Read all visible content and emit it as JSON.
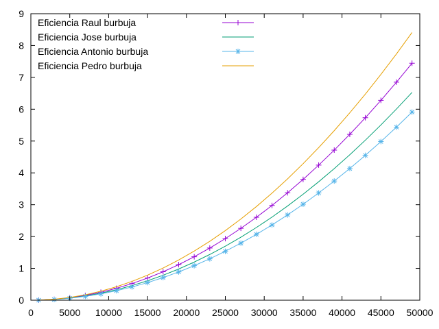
{
  "chart_data": {
    "type": "line",
    "title": "",
    "xlabel": "",
    "ylabel": "",
    "xlim": [
      0,
      50000
    ],
    "ylim": [
      0,
      9
    ],
    "xticks": [
      0,
      5000,
      10000,
      15000,
      20000,
      25000,
      30000,
      35000,
      40000,
      45000,
      50000
    ],
    "yticks": [
      0,
      1,
      2,
      3,
      4,
      5,
      6,
      7,
      8,
      9
    ],
    "grid": false,
    "legend_position": "top-left",
    "x": [
      1000,
      3000,
      5000,
      7000,
      9000,
      11000,
      13000,
      15000,
      17000,
      19000,
      21000,
      23000,
      25000,
      27000,
      29000,
      31000,
      33000,
      35000,
      37000,
      39000,
      41000,
      43000,
      45000,
      47000,
      49000
    ],
    "series": [
      {
        "name": "Eficiencia Raul burbuja",
        "color": "#9400d3",
        "marker": "plus",
        "values": [
          0.003,
          0.028,
          0.078,
          0.152,
          0.25,
          0.374,
          0.523,
          0.696,
          0.894,
          1.117,
          1.365,
          1.638,
          1.935,
          2.258,
          2.605,
          2.977,
          3.374,
          3.796,
          4.243,
          4.714,
          5.211,
          5.732,
          6.278,
          6.849,
          7.444
        ]
      },
      {
        "name": "Eficiencia Jose burbuja",
        "color": "#009e73",
        "marker": "none",
        "values": [
          0.003,
          0.024,
          0.068,
          0.133,
          0.22,
          0.329,
          0.459,
          0.611,
          0.785,
          0.98,
          1.198,
          1.437,
          1.698,
          1.98,
          2.285,
          2.611,
          2.959,
          3.329,
          3.721,
          4.134,
          4.569,
          5.026,
          5.505,
          6.006,
          6.528
        ]
      },
      {
        "name": "Eficiencia Antonio burbuja",
        "color": "#56b4e9",
        "marker": "star",
        "values": [
          0.002,
          0.022,
          0.062,
          0.121,
          0.199,
          0.298,
          0.416,
          0.553,
          0.711,
          0.888,
          1.085,
          1.301,
          1.537,
          1.793,
          2.069,
          2.364,
          2.679,
          3.014,
          3.369,
          3.743,
          4.137,
          4.55,
          4.984,
          5.437,
          5.91
        ]
      },
      {
        "name": "Eficiencia Pedro burbuja",
        "color": "#e69f00",
        "marker": "none",
        "values": [
          0.003,
          0.031,
          0.087,
          0.171,
          0.283,
          0.423,
          0.591,
          0.787,
          1.011,
          1.263,
          1.543,
          1.851,
          2.187,
          2.551,
          2.943,
          3.364,
          3.812,
          4.289,
          4.793,
          5.326,
          5.887,
          6.475,
          7.092,
          7.737,
          8.41
        ]
      }
    ]
  }
}
